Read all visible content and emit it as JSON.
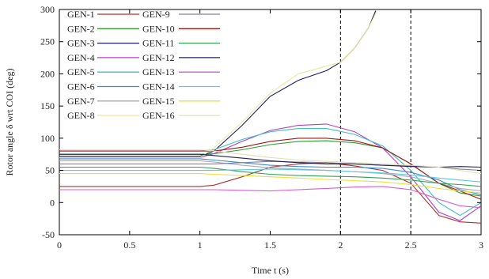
{
  "chart_data": {
    "type": "line",
    "xlabel": "Time t (s)",
    "ylabel": "Rotor angle δ wrt COI (deg)",
    "xlim": [
      0,
      3
    ],
    "ylim": [
      -50,
      300
    ],
    "xticks": [
      0,
      0.5,
      1,
      1.5,
      2,
      2.5,
      3
    ],
    "yticks": [
      -50,
      0,
      50,
      100,
      150,
      200,
      250,
      300
    ],
    "xtick_labels": [
      "0",
      "0.5",
      "1",
      "1.5",
      "2",
      "2.5",
      "3"
    ],
    "ytick_labels": [
      "-50",
      "0",
      "50",
      "100",
      "150",
      "200",
      "250",
      "300"
    ],
    "vlines": [
      2,
      2.5
    ],
    "legend": "top-left",
    "grid": false,
    "series": [
      {
        "name": "GEN-1",
        "color": "#b03030",
        "x": [
          0,
          1,
          1.1,
          1.3,
          1.5,
          1.7,
          1.9,
          2.1,
          2.3,
          2.5,
          2.7,
          2.85,
          3
        ],
        "y": [
          25,
          25,
          27,
          40,
          55,
          60,
          62,
          57,
          50,
          30,
          -20,
          -30,
          -32
        ]
      },
      {
        "name": "GEN-2",
        "color": "#2e9e2e",
        "x": [
          0,
          1,
          1.1,
          1.3,
          1.5,
          1.7,
          1.9,
          2.1,
          2.3,
          2.5,
          2.7,
          2.85,
          3
        ],
        "y": [
          75,
          75,
          76,
          82,
          90,
          95,
          96,
          93,
          85,
          60,
          30,
          15,
          10
        ]
      },
      {
        "name": "GEN-3",
        "color": "#1c1c66",
        "x": [
          0,
          1,
          1.1,
          1.3,
          1.5,
          1.7,
          1.9,
          2.0,
          2.1,
          2.2,
          2.25
        ],
        "y": [
          72,
          72,
          80,
          120,
          165,
          190,
          205,
          218,
          240,
          272,
          298
        ]
      },
      {
        "name": "GEN-4",
        "color": "#b040c0",
        "x": [
          0,
          1,
          1.1,
          1.3,
          1.5,
          1.7,
          1.9,
          2.1,
          2.3,
          2.5,
          2.7,
          2.85,
          3
        ],
        "y": [
          70,
          70,
          76,
          95,
          112,
          120,
          122,
          110,
          85,
          40,
          -15,
          -28,
          -5
        ]
      },
      {
        "name": "GEN-5",
        "color": "#40c0c0",
        "x": [
          0,
          1,
          1.1,
          1.3,
          1.5,
          1.7,
          1.9,
          2.1,
          2.3,
          2.5,
          2.7,
          2.85,
          3
        ],
        "y": [
          80,
          80,
          82,
          98,
          110,
          115,
          115,
          106,
          88,
          50,
          0,
          -20,
          0
        ]
      },
      {
        "name": "GEN-6",
        "color": "#3a8ac8",
        "x": [
          0,
          1,
          1.1,
          1.3,
          1.5,
          1.7,
          1.9,
          2.1,
          2.3,
          2.5,
          2.7,
          2.85,
          3
        ],
        "y": [
          68,
          68,
          66,
          62,
          58,
          56,
          55,
          55,
          53,
          47,
          35,
          20,
          12
        ]
      },
      {
        "name": "GEN-7",
        "color": "#a8a8b8",
        "x": [
          0,
          1,
          1.1,
          1.3,
          1.5,
          1.7,
          1.9,
          2.1,
          2.3,
          2.5,
          2.7,
          2.85,
          3
        ],
        "y": [
          65,
          65,
          63,
          58,
          54,
          52,
          50,
          48,
          45,
          40,
          30,
          22,
          18
        ]
      },
      {
        "name": "GEN-8",
        "color": "#e8e8a0",
        "x": [
          0,
          1,
          1.1,
          1.3,
          1.5,
          1.7,
          1.9,
          2.0,
          2.1,
          2.2,
          2.26
        ],
        "y": [
          70,
          70,
          85,
          125,
          170,
          200,
          212,
          218,
          240,
          272,
          298
        ]
      },
      {
        "name": "GEN-9",
        "color": "#8080a0",
        "x": [
          0,
          1,
          1.1,
          1.3,
          1.5,
          1.7,
          1.9,
          2.1,
          2.3,
          2.5,
          2.7,
          2.85,
          3
        ],
        "y": [
          60,
          60,
          60,
          62,
          64,
          63,
          62,
          60,
          58,
          57,
          55,
          52,
          50
        ]
      },
      {
        "name": "GEN-10",
        "color": "#a01818",
        "x": [
          0,
          1,
          1.1,
          1.3,
          1.5,
          1.7,
          1.9,
          2.1,
          2.3,
          2.5,
          2.7,
          2.85,
          3
        ],
        "y": [
          80,
          80,
          80,
          86,
          95,
          100,
          100,
          96,
          85,
          60,
          30,
          18,
          5
        ]
      },
      {
        "name": "GEN-11",
        "color": "#35a055",
        "x": [
          0,
          1,
          1.1,
          1.3,
          1.5,
          1.7,
          1.9,
          2.1,
          2.3,
          2.5,
          2.7,
          2.85,
          3
        ],
        "y": [
          55,
          55,
          53,
          48,
          44,
          42,
          41,
          40,
          38,
          35,
          30,
          28,
          25
        ]
      },
      {
        "name": "GEN-12",
        "color": "#202050",
        "x": [
          0,
          1,
          1.1,
          1.3,
          1.5,
          1.7,
          1.9,
          2.1,
          2.3,
          2.5,
          2.7,
          2.85,
          3
        ],
        "y": [
          75,
          75,
          73,
          69,
          65,
          62,
          60,
          60,
          58,
          56,
          55,
          56,
          55
        ]
      },
      {
        "name": "GEN-13",
        "color": "#d060d0",
        "x": [
          0,
          1,
          1.1,
          1.3,
          1.5,
          1.7,
          1.9,
          2.1,
          2.3,
          2.5,
          2.7,
          2.85,
          3
        ],
        "y": [
          20,
          20,
          20,
          19,
          18,
          20,
          22,
          24,
          25,
          20,
          5,
          -5,
          -8
        ]
      },
      {
        "name": "GEN-14",
        "color": "#60c8e0",
        "x": [
          0,
          1,
          1.1,
          1.3,
          1.5,
          1.7,
          1.9,
          2.1,
          2.3,
          2.5,
          2.7,
          2.85,
          3
        ],
        "y": [
          50,
          50,
          50,
          51,
          52,
          51,
          50,
          48,
          46,
          43,
          38,
          35,
          32
        ]
      },
      {
        "name": "GEN-15",
        "color": "#e8e040",
        "x": [
          0,
          1,
          1.1,
          1.3,
          1.5,
          1.7,
          1.9,
          2.1,
          2.3,
          2.5,
          2.7,
          2.85,
          3
        ],
        "y": [
          45,
          45,
          44,
          42,
          40,
          38,
          36,
          34,
          32,
          28,
          22,
          18,
          15
        ]
      },
      {
        "name": "GEN-16",
        "color": "#e0e0c0",
        "x": [
          0,
          1,
          1.1,
          1.3,
          1.5,
          1.7,
          1.9,
          2.1,
          2.3,
          2.5,
          2.7,
          2.85,
          3
        ],
        "y": [
          82,
          82,
          80,
          75,
          70,
          66,
          64,
          62,
          60,
          58,
          55,
          50,
          45
        ]
      }
    ]
  }
}
